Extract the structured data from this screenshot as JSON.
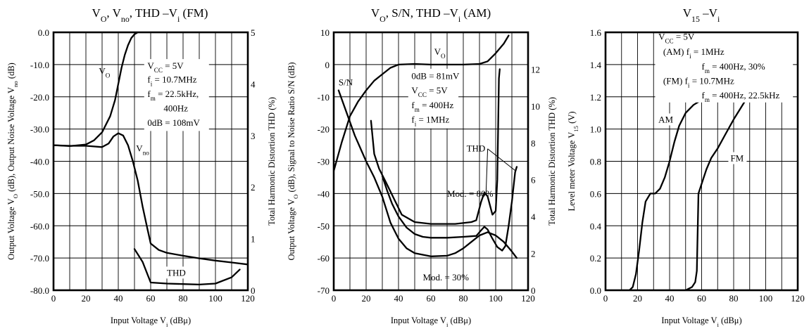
{
  "chart_data": [
    {
      "type": "line",
      "title": "V<sub>O</sub>, V<sub>no</sub>, THD –V<sub>i</sub> (FM)",
      "xlabel": "Input Voltage V<sub>i</sub> (dBμ)",
      "ylabel": "Output Voltage V<sub>O</sub> (dB), Output Noise Voltage V<sub>no</sub> (dB)",
      "y2label": "Total Harmonic Distortion THD (%)",
      "xlim": [
        0,
        120
      ],
      "ylim": [
        -80,
        0
      ],
      "y2lim": [
        0,
        5
      ],
      "xticks": [
        0,
        20,
        40,
        60,
        80,
        100,
        120
      ],
      "yticks": [
        0,
        -10,
        -20,
        -30,
        -40,
        -50,
        -60,
        -70,
        -80
      ],
      "y2ticks": [
        0,
        1,
        2,
        3,
        4,
        5
      ],
      "grid": true,
      "series": [
        {
          "name": "V<sub>O</sub>",
          "axis": "left",
          "points": [
            [
              0,
              -35
            ],
            [
              10,
              -35.3
            ],
            [
              20,
              -34.8
            ],
            [
              25,
              -33.5
            ],
            [
              30,
              -31
            ],
            [
              35,
              -26
            ],
            [
              38,
              -21
            ],
            [
              40,
              -16
            ],
            [
              42,
              -11
            ],
            [
              44,
              -7
            ],
            [
              46,
              -4
            ],
            [
              48,
              -1.8
            ],
            [
              50,
              -0.6
            ],
            [
              52,
              0
            ]
          ]
        },
        {
          "name": "V<sub>no</sub>",
          "axis": "left",
          "points": [
            [
              0,
              -35
            ],
            [
              10,
              -35.2
            ],
            [
              20,
              -35.2
            ],
            [
              30,
              -35.6
            ],
            [
              34,
              -34.5
            ],
            [
              37,
              -32.3
            ],
            [
              40,
              -31.3
            ],
            [
              43,
              -32
            ],
            [
              46,
              -35
            ],
            [
              49,
              -40
            ],
            [
              52,
              -46
            ],
            [
              55,
              -54
            ],
            [
              58,
              -61
            ],
            [
              60,
              -65.5
            ],
            [
              65,
              -67.5
            ],
            [
              70,
              -68.4
            ],
            [
              80,
              -69.3
            ],
            [
              90,
              -70.1
            ],
            [
              100,
              -70.8
            ],
            [
              110,
              -71.4
            ],
            [
              120,
              -72
            ]
          ]
        },
        {
          "name": "THD",
          "axis": "right",
          "points": [
            [
              50,
              0.8
            ],
            [
              55,
              0.55
            ],
            [
              60,
              0.15
            ],
            [
              70,
              0.13
            ],
            [
              80,
              0.12
            ],
            [
              90,
              0.11
            ],
            [
              100,
              0.13
            ],
            [
              110,
              0.25
            ],
            [
              115,
              0.4
            ]
          ]
        }
      ],
      "annotations": [
        {
          "text": "V<sub>O</sub>",
          "at": [
            28,
            -13
          ]
        },
        {
          "text": "V<sub>no</sub>",
          "at": [
            51,
            -37
          ]
        },
        {
          "text": "THD",
          "at": [
            70,
            -75.5
          ]
        },
        {
          "text": "V<sub>CC</sub> = 5V",
          "at": [
            58,
            -11.3
          ]
        },
        {
          "text": "f<sub>i</sub> = 10.7MHz",
          "at": [
            58,
            -15.6
          ]
        },
        {
          "text": "f<sub>m</sub> = 22.5kHz,",
          "at": [
            58,
            -20
          ]
        },
        {
          "text": "400Hz",
          "at": [
            68,
            -24.5
          ]
        },
        {
          "text": "0dB = 108mV",
          "at": [
            58,
            -29
          ]
        }
      ]
    },
    {
      "type": "line",
      "title": "V<sub>O</sub>, S/N, THD –V<sub>i</sub> (AM)",
      "xlabel": "Input Voltage V<sub>i</sub> (dBμ)",
      "ylabel": "Output Voltage V<sub>O</sub> (dB), Signal to Noise Ratio S/N (dB)",
      "y2label": "Total Harmonic Distortion THD (%)",
      "xlim": [
        0,
        120
      ],
      "ylim": [
        -70,
        10
      ],
      "y2lim": [
        0,
        14
      ],
      "xticks": [
        0,
        20,
        40,
        60,
        80,
        100,
        120
      ],
      "yticks": [
        10,
        0,
        -10,
        -20,
        -30,
        -40,
        -50,
        -60,
        -70
      ],
      "y2ticks": [
        0,
        2,
        4,
        6,
        8,
        10,
        12
      ],
      "grid": true,
      "series": [
        {
          "name": "V<sub>O</sub>",
          "axis": "left",
          "points": [
            [
              0,
              -33
            ],
            [
              5,
              -24
            ],
            [
              10,
              -16
            ],
            [
              15,
              -11.5
            ],
            [
              20,
              -8
            ],
            [
              25,
              -5
            ],
            [
              30,
              -3
            ],
            [
              35,
              -1
            ],
            [
              40,
              0
            ],
            [
              50,
              0.2
            ],
            [
              60,
              0
            ],
            [
              70,
              0
            ],
            [
              80,
              0
            ],
            [
              90,
              0.2
            ],
            [
              95,
              1
            ],
            [
              100,
              3.5
            ],
            [
              105,
              6.5
            ],
            [
              108,
              9
            ]
          ]
        },
        {
          "name": "S/N",
          "axis": "left",
          "points": [
            [
              3,
              -8
            ],
            [
              8,
              -15
            ],
            [
              13,
              -22
            ],
            [
              20,
              -30
            ],
            [
              25,
              -35
            ],
            [
              30,
              -41
            ],
            [
              35,
              -49
            ],
            [
              40,
              -54
            ],
            [
              45,
              -57
            ],
            [
              50,
              -58.5
            ],
            [
              55,
              -59
            ],
            [
              60,
              -59.5
            ],
            [
              70,
              -59.3
            ],
            [
              75,
              -58.5
            ],
            [
              80,
              -57
            ],
            [
              85,
              -55
            ],
            [
              90,
              -53
            ],
            [
              95,
              -52
            ],
            [
              100,
              -53
            ],
            [
              105,
              -55
            ],
            [
              110,
              -58
            ],
            [
              113,
              -60
            ]
          ]
        },
        {
          "name": "THD Mod. = 80%",
          "axis": "right",
          "points": [
            [
              23,
              9.2
            ],
            [
              25,
              7.4
            ],
            [
              28,
              6.6
            ],
            [
              32,
              5.9
            ],
            [
              37,
              5
            ],
            [
              42,
              4.1
            ],
            [
              50,
              3.7
            ],
            [
              60,
              3.6
            ],
            [
              75,
              3.6
            ],
            [
              85,
              3.7
            ],
            [
              88,
              3.8
            ],
            [
              91,
              4.8
            ],
            [
              93,
              5.3
            ],
            [
              95,
              5.1
            ],
            [
              98,
              4.1
            ],
            [
              100,
              4.3
            ],
            [
              101,
              6
            ],
            [
              102,
              11.5
            ],
            [
              102.5,
              12
            ]
          ]
        },
        {
          "name": "THD Mod. = 30%",
          "axis": "right",
          "points": [
            [
              30,
              6.2
            ],
            [
              33,
              5.4
            ],
            [
              36,
              4.7
            ],
            [
              40,
              4
            ],
            [
              45,
              3.4
            ],
            [
              50,
              3.05
            ],
            [
              55,
              2.9
            ],
            [
              60,
              2.85
            ],
            [
              70,
              2.85
            ],
            [
              80,
              2.9
            ],
            [
              88,
              2.95
            ],
            [
              91,
              3.25
            ],
            [
              93,
              3.45
            ],
            [
              95,
              3.3
            ],
            [
              98,
              2.8
            ],
            [
              101,
              2.35
            ],
            [
              104,
              2.15
            ],
            [
              106,
              2.4
            ],
            [
              108,
              3.5
            ],
            [
              110,
              4.8
            ],
            [
              112,
              6.4
            ],
            [
              113,
              6.7
            ]
          ]
        }
      ],
      "annotations": [
        {
          "text": "V<sub>O</sub>",
          "at": [
            62,
            3
          ]
        },
        {
          "text": "S/N",
          "at": [
            3,
            -6.5
          ]
        },
        {
          "text": "THD",
          "at": [
            82,
            -27
          ]
        },
        {
          "text": "Mod. = 80%",
          "at": [
            70,
            -41
          ]
        },
        {
          "text": "Mod. = 30%",
          "at": [
            55,
            -67
          ]
        },
        {
          "text": "0dB = 81mV",
          "at": [
            48,
            -4.5
          ]
        },
        {
          "text": "V<sub>CC</sub> = 5V",
          "at": [
            48,
            -9
          ]
        },
        {
          "text": "f<sub>m</sub> = 400Hz",
          "at": [
            48,
            -13.5
          ]
        },
        {
          "text": "f<sub>i</sub> = 1MHz",
          "at": [
            48,
            -18
          ]
        }
      ]
    },
    {
      "type": "line",
      "title": "V<sub>15</sub> –V<sub>i</sub>",
      "xlabel": "Input Voltage V<sub>i</sub> (dBμ)",
      "ylabel": "Level meter Voltage V<sub>15</sub> (V)",
      "xlim": [
        0,
        120
      ],
      "ylim": [
        0,
        1.6
      ],
      "xticks": [
        0,
        20,
        40,
        60,
        80,
        100,
        120
      ],
      "yticks": [
        0,
        0.2,
        0.4,
        0.6,
        0.8,
        1.0,
        1.2,
        1.4,
        1.6
      ],
      "grid": true,
      "series": [
        {
          "name": "AM",
          "axis": "left",
          "points": [
            [
              15,
              0
            ],
            [
              17,
              0.02
            ],
            [
              19,
              0.1
            ],
            [
              21,
              0.25
            ],
            [
              23,
              0.42
            ],
            [
              25,
              0.55
            ],
            [
              28,
              0.6
            ],
            [
              31,
              0.6
            ],
            [
              34,
              0.63
            ],
            [
              37,
              0.7
            ],
            [
              40,
              0.8
            ],
            [
              43,
              0.92
            ],
            [
              46,
              1.02
            ],
            [
              50,
              1.1
            ],
            [
              55,
              1.15
            ],
            [
              60,
              1.18
            ],
            [
              65,
              1.2
            ]
          ]
        },
        {
          "name": "FM",
          "axis": "left",
          "points": [
            [
              50,
              0
            ],
            [
              54,
              0.02
            ],
            [
              56,
              0.05
            ],
            [
              57,
              0.12
            ],
            [
              58,
              0.6
            ],
            [
              60,
              0.66
            ],
            [
              63,
              0.75
            ],
            [
              66,
              0.82
            ],
            [
              70,
              0.88
            ],
            [
              75,
              0.97
            ],
            [
              80,
              1.06
            ],
            [
              85,
              1.14
            ],
            [
              90,
              1.22
            ]
          ]
        }
      ],
      "annotations": [
        {
          "text": "AM",
          "at": [
            33,
            1.04
          ]
        },
        {
          "text": "FM",
          "at": [
            78,
            0.8
          ]
        },
        {
          "text": "V<sub>CC</sub> = 5V",
          "at": [
            33,
            1.555
          ]
        },
        {
          "text": "(AM)  f<sub>i</sub> = 1MHz",
          "at": [
            36,
            1.46
          ]
        },
        {
          "text": "f<sub>m</sub> = 400Hz, 30%",
          "at": [
            60,
            1.37
          ]
        },
        {
          "text": "(FM)  f<sub>i</sub> = 10.7MHz",
          "at": [
            36,
            1.28
          ]
        },
        {
          "text": "f<sub>m</sub> = 400Hz, 22.5kHz",
          "at": [
            60,
            1.19
          ]
        }
      ]
    }
  ]
}
